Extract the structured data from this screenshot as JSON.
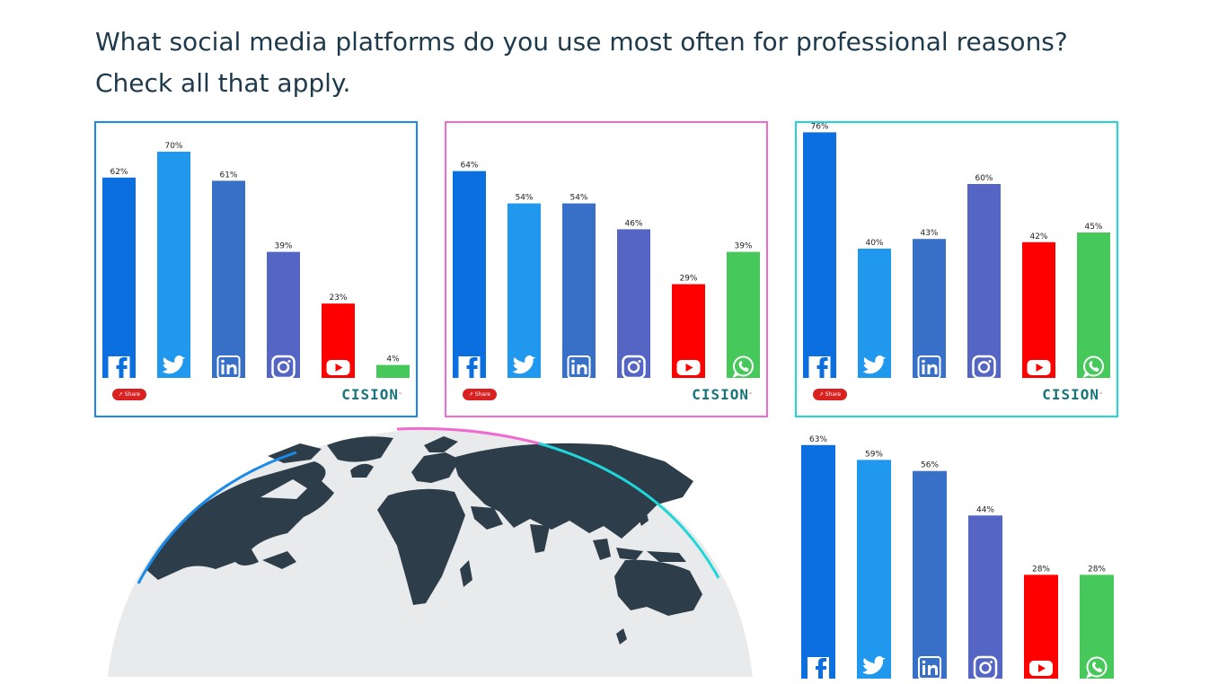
{
  "question": "What social media platforms do you use most often for professional reasons? Check all that apply.",
  "share_label": "Share",
  "brand": "CISION",
  "brand_mark": "™",
  "colors": {
    "facebook": "#0b6fe0",
    "twitter": "#1f98ee",
    "linkedin": "#3870c8",
    "instagram": "#5565c3",
    "youtube": "#ff0000",
    "whatsapp": "#47c85a",
    "panel_1_border": "#1a8ae8",
    "panel_2_border": "#f06bcf",
    "panel_3_border": "#1fd6d9",
    "land": "#2d3e4a",
    "ocean": "#e9eaeb"
  },
  "chart_data": [
    {
      "type": "bar",
      "categories": [
        "facebook-icon",
        "twitter-icon",
        "linkedin-icon",
        "instagram-icon",
        "youtube-icon",
        "whatsapp-icon"
      ],
      "values": [
        62,
        70,
        61,
        39,
        23,
        4
      ],
      "labels": [
        "62%",
        "70%",
        "61%",
        "39%",
        "23%",
        "4%"
      ],
      "icons_shown": [
        true,
        true,
        true,
        true,
        true,
        false
      ],
      "ylim": [
        0,
        100
      ]
    },
    {
      "type": "bar",
      "categories": [
        "facebook-icon",
        "twitter-icon",
        "linkedin-icon",
        "instagram-icon",
        "youtube-icon",
        "whatsapp-icon"
      ],
      "values": [
        64,
        54,
        54,
        46,
        29,
        39
      ],
      "labels": [
        "64%",
        "54%",
        "54%",
        "46%",
        "29%",
        "39%"
      ],
      "icons_shown": [
        true,
        true,
        true,
        true,
        true,
        true
      ],
      "ylim": [
        0,
        100
      ]
    },
    {
      "type": "bar",
      "categories": [
        "facebook-icon",
        "twitter-icon",
        "linkedin-icon",
        "instagram-icon",
        "youtube-icon",
        "whatsapp-icon"
      ],
      "values": [
        76,
        40,
        43,
        60,
        42,
        45
      ],
      "labels": [
        "76%",
        "40%",
        "43%",
        "60%",
        "42%",
        "45%"
      ],
      "icons_shown": [
        true,
        true,
        true,
        true,
        true,
        true
      ],
      "ylim": [
        0,
        100
      ]
    },
    {
      "type": "bar",
      "categories": [
        "facebook-icon",
        "twitter-icon",
        "linkedin-icon",
        "instagram-icon",
        "youtube-icon",
        "whatsapp-icon"
      ],
      "values": [
        63,
        59,
        56,
        44,
        28,
        28
      ],
      "labels": [
        "63%",
        "59%",
        "56%",
        "44%",
        "28%",
        "28%"
      ],
      "icons_shown": [
        true,
        true,
        true,
        true,
        true,
        true
      ],
      "ylim": [
        0,
        100
      ]
    }
  ]
}
